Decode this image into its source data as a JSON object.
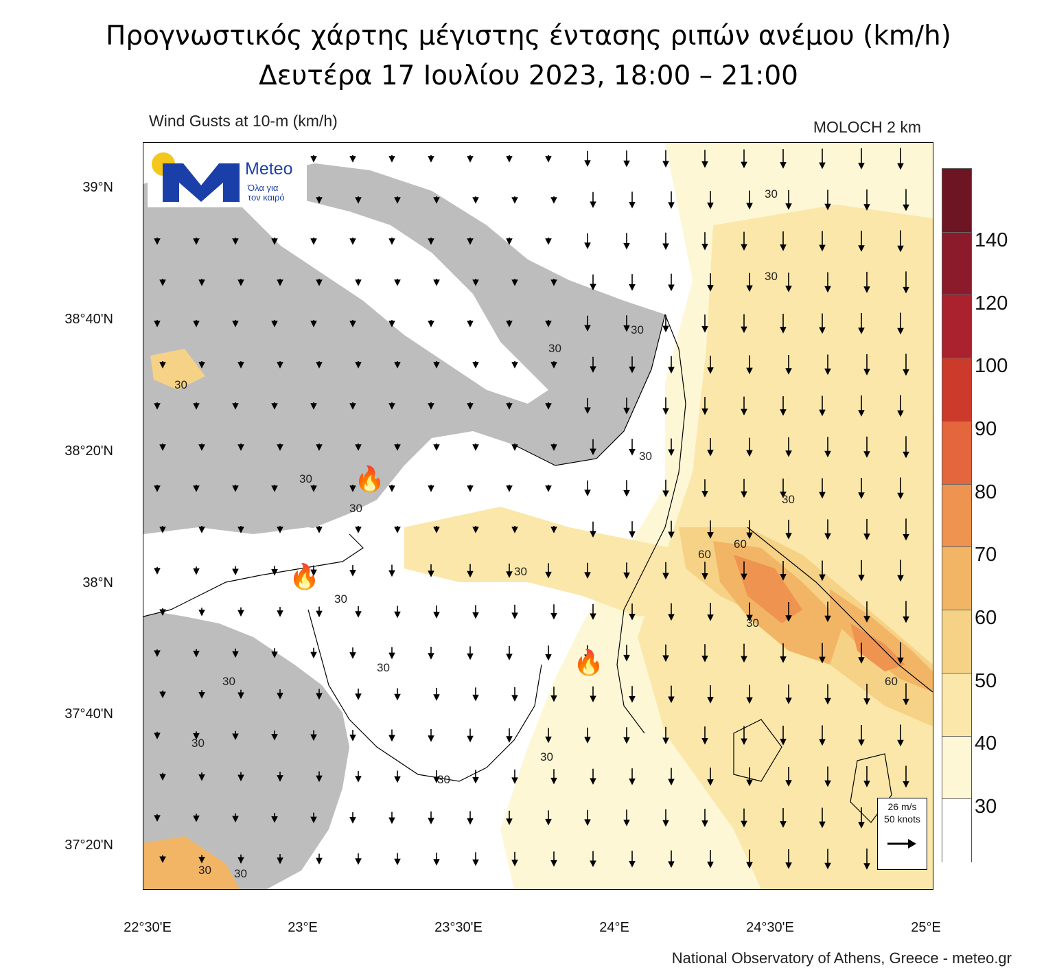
{
  "title": {
    "line1": "Προγνωστικός χάρτης μέγιστης έντασης ριπών ανέμου (km/h)",
    "line2": "Δευτέρα 17 Ιουλίου 2023, 18:00 – 21:00"
  },
  "subtitle_left": "Wind Gusts at 10-m (km/h)",
  "subtitle_right": "MOLOCH 2 km",
  "logo": {
    "brand": "Meteo",
    "tagline1": "Όλα για",
    "tagline2": "τον καιρό"
  },
  "lat_ticks": [
    "39°N",
    "38°40'N",
    "38°20'N",
    "38°N",
    "37°40'N",
    "37°20'N"
  ],
  "lon_ticks": [
    "22°30'E",
    "23°E",
    "23°30'E",
    "24°E",
    "24°30'E",
    "25°E"
  ],
  "colorbar": {
    "levels": [
      "140",
      "120",
      "100",
      "90",
      "80",
      "70",
      "60",
      "50",
      "40",
      "30"
    ],
    "colors": [
      "#6e1523",
      "#8b1b2a",
      "#a9222d",
      "#cc3a2c",
      "#e4663d",
      "#ee9450",
      "#f2b565",
      "#f6d286",
      "#fbe7a9",
      "#fdf7d6",
      "#ffffff"
    ]
  },
  "contour_labels": [
    "30",
    "60"
  ],
  "reference_vector": {
    "line1": "26 m/s",
    "line2": "50 knots"
  },
  "footer": "National Observatory of Athens, Greece - meteo.gr",
  "fire_marker": "🔥",
  "map_colors": {
    "land_gray": "#bdbdbd",
    "sea_white": "#ffffff"
  }
}
